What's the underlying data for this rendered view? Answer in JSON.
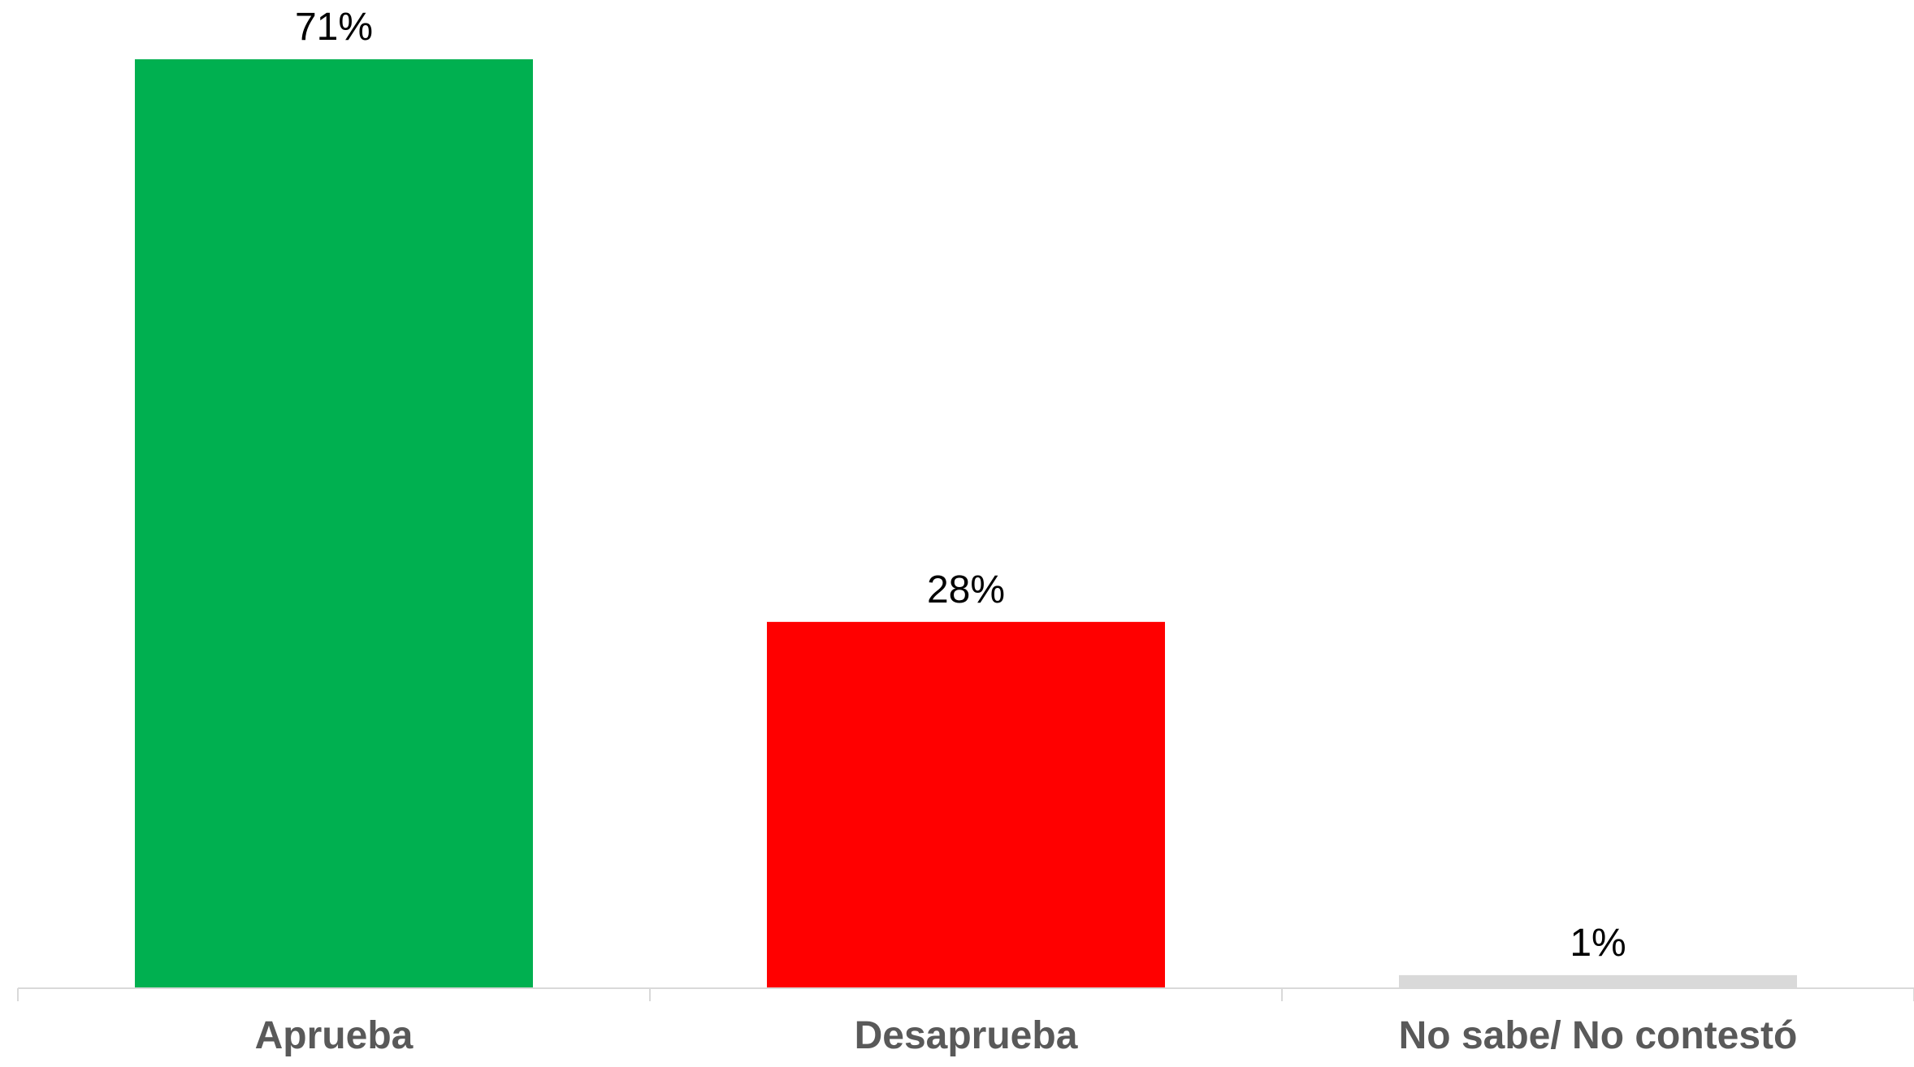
{
  "chart_data": {
    "type": "bar",
    "categories": [
      "Aprueba",
      "Desaprueba",
      "No sabe/ No contestó"
    ],
    "values": [
      71,
      28,
      1
    ],
    "value_labels": [
      "71%",
      "28%",
      "1%"
    ],
    "colors": [
      "#00B050",
      "#FF0000",
      "#D9D9D9"
    ],
    "title": "",
    "xlabel": "",
    "ylabel": "",
    "ylim": [
      0,
      71
    ],
    "grid": false,
    "legend": "none"
  }
}
